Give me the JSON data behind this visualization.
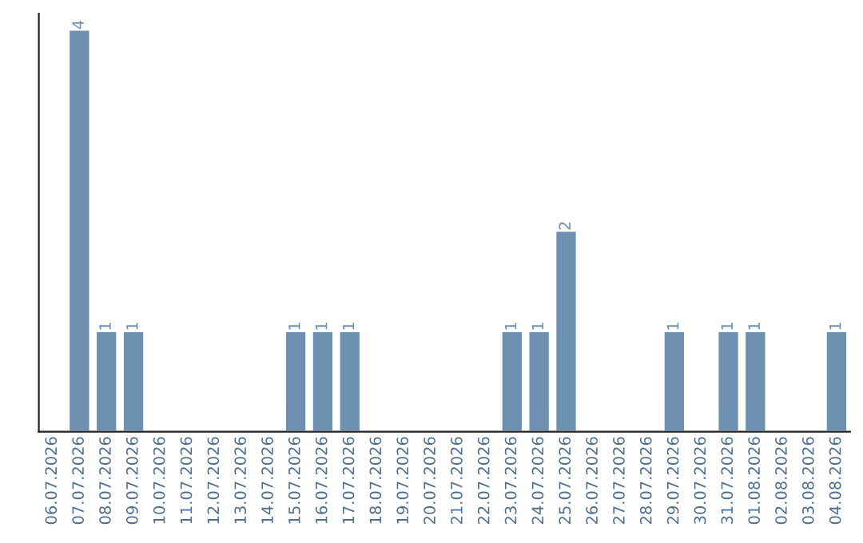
{
  "chart_data": {
    "type": "bar",
    "categories": [
      "06.07.2026",
      "07.07.2026",
      "08.07.2026",
      "09.07.2026",
      "10.07.2026",
      "11.07.2026",
      "12.07.2026",
      "13.07.2026",
      "14.07.2026",
      "15.07.2026",
      "16.07.2026",
      "17.07.2026",
      "18.07.2026",
      "19.07.2026",
      "20.07.2026",
      "21.07.2026",
      "22.07.2026",
      "23.07.2026",
      "24.07.2026",
      "25.07.2026",
      "26.07.2026",
      "27.07.2026",
      "28.07.2026",
      "29.07.2026",
      "30.07.2026",
      "31.07.2026",
      "01.08.2026",
      "02.08.2026",
      "03.08.2026",
      "04.08.2026"
    ],
    "values": [
      null,
      4,
      1,
      1,
      null,
      null,
      null,
      null,
      null,
      1,
      1,
      1,
      null,
      null,
      null,
      null,
      null,
      1,
      1,
      2,
      null,
      null,
      null,
      1,
      null,
      1,
      1,
      null,
      null,
      1
    ],
    "value_labels": [
      null,
      "4",
      "1",
      "1",
      null,
      null,
      null,
      null,
      null,
      "1",
      "1",
      "1",
      null,
      null,
      null,
      null,
      null,
      "1",
      "1",
      "2",
      null,
      null,
      null,
      "1",
      null,
      "1",
      "1",
      null,
      null,
      "1"
    ],
    "color": "#6d8fb0",
    "tick_labels": "x",
    "grid": false,
    "legend": false
  }
}
